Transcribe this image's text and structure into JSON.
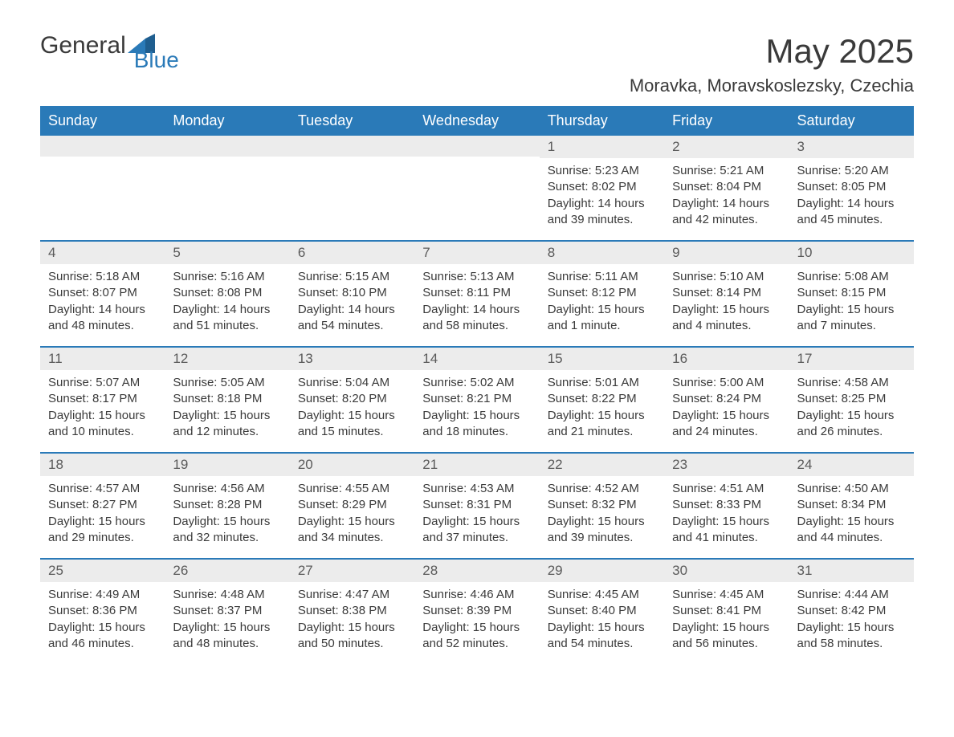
{
  "logo": {
    "text1": "General",
    "text2": "Blue"
  },
  "title": "May 2025",
  "location": "Moravka, Moravskoslezsky, Czechia",
  "weekdays": [
    "Sunday",
    "Monday",
    "Tuesday",
    "Wednesday",
    "Thursday",
    "Friday",
    "Saturday"
  ],
  "colors": {
    "header_bg": "#2a7ab8",
    "header_text": "#ffffff",
    "daynum_bg": "#ececec",
    "week_border": "#2a7ab8",
    "body_text": "#3a3a3a"
  },
  "weeks": [
    [
      {
        "n": "",
        "sunrise": "",
        "sunset": "",
        "daylight": ""
      },
      {
        "n": "",
        "sunrise": "",
        "sunset": "",
        "daylight": ""
      },
      {
        "n": "",
        "sunrise": "",
        "sunset": "",
        "daylight": ""
      },
      {
        "n": "",
        "sunrise": "",
        "sunset": "",
        "daylight": ""
      },
      {
        "n": "1",
        "sunrise": "Sunrise: 5:23 AM",
        "sunset": "Sunset: 8:02 PM",
        "daylight": "Daylight: 14 hours and 39 minutes."
      },
      {
        "n": "2",
        "sunrise": "Sunrise: 5:21 AM",
        "sunset": "Sunset: 8:04 PM",
        "daylight": "Daylight: 14 hours and 42 minutes."
      },
      {
        "n": "3",
        "sunrise": "Sunrise: 5:20 AM",
        "sunset": "Sunset: 8:05 PM",
        "daylight": "Daylight: 14 hours and 45 minutes."
      }
    ],
    [
      {
        "n": "4",
        "sunrise": "Sunrise: 5:18 AM",
        "sunset": "Sunset: 8:07 PM",
        "daylight": "Daylight: 14 hours and 48 minutes."
      },
      {
        "n": "5",
        "sunrise": "Sunrise: 5:16 AM",
        "sunset": "Sunset: 8:08 PM",
        "daylight": "Daylight: 14 hours and 51 minutes."
      },
      {
        "n": "6",
        "sunrise": "Sunrise: 5:15 AM",
        "sunset": "Sunset: 8:10 PM",
        "daylight": "Daylight: 14 hours and 54 minutes."
      },
      {
        "n": "7",
        "sunrise": "Sunrise: 5:13 AM",
        "sunset": "Sunset: 8:11 PM",
        "daylight": "Daylight: 14 hours and 58 minutes."
      },
      {
        "n": "8",
        "sunrise": "Sunrise: 5:11 AM",
        "sunset": "Sunset: 8:12 PM",
        "daylight": "Daylight: 15 hours and 1 minute."
      },
      {
        "n": "9",
        "sunrise": "Sunrise: 5:10 AM",
        "sunset": "Sunset: 8:14 PM",
        "daylight": "Daylight: 15 hours and 4 minutes."
      },
      {
        "n": "10",
        "sunrise": "Sunrise: 5:08 AM",
        "sunset": "Sunset: 8:15 PM",
        "daylight": "Daylight: 15 hours and 7 minutes."
      }
    ],
    [
      {
        "n": "11",
        "sunrise": "Sunrise: 5:07 AM",
        "sunset": "Sunset: 8:17 PM",
        "daylight": "Daylight: 15 hours and 10 minutes."
      },
      {
        "n": "12",
        "sunrise": "Sunrise: 5:05 AM",
        "sunset": "Sunset: 8:18 PM",
        "daylight": "Daylight: 15 hours and 12 minutes."
      },
      {
        "n": "13",
        "sunrise": "Sunrise: 5:04 AM",
        "sunset": "Sunset: 8:20 PM",
        "daylight": "Daylight: 15 hours and 15 minutes."
      },
      {
        "n": "14",
        "sunrise": "Sunrise: 5:02 AM",
        "sunset": "Sunset: 8:21 PM",
        "daylight": "Daylight: 15 hours and 18 minutes."
      },
      {
        "n": "15",
        "sunrise": "Sunrise: 5:01 AM",
        "sunset": "Sunset: 8:22 PM",
        "daylight": "Daylight: 15 hours and 21 minutes."
      },
      {
        "n": "16",
        "sunrise": "Sunrise: 5:00 AM",
        "sunset": "Sunset: 8:24 PM",
        "daylight": "Daylight: 15 hours and 24 minutes."
      },
      {
        "n": "17",
        "sunrise": "Sunrise: 4:58 AM",
        "sunset": "Sunset: 8:25 PM",
        "daylight": "Daylight: 15 hours and 26 minutes."
      }
    ],
    [
      {
        "n": "18",
        "sunrise": "Sunrise: 4:57 AM",
        "sunset": "Sunset: 8:27 PM",
        "daylight": "Daylight: 15 hours and 29 minutes."
      },
      {
        "n": "19",
        "sunrise": "Sunrise: 4:56 AM",
        "sunset": "Sunset: 8:28 PM",
        "daylight": "Daylight: 15 hours and 32 minutes."
      },
      {
        "n": "20",
        "sunrise": "Sunrise: 4:55 AM",
        "sunset": "Sunset: 8:29 PM",
        "daylight": "Daylight: 15 hours and 34 minutes."
      },
      {
        "n": "21",
        "sunrise": "Sunrise: 4:53 AM",
        "sunset": "Sunset: 8:31 PM",
        "daylight": "Daylight: 15 hours and 37 minutes."
      },
      {
        "n": "22",
        "sunrise": "Sunrise: 4:52 AM",
        "sunset": "Sunset: 8:32 PM",
        "daylight": "Daylight: 15 hours and 39 minutes."
      },
      {
        "n": "23",
        "sunrise": "Sunrise: 4:51 AM",
        "sunset": "Sunset: 8:33 PM",
        "daylight": "Daylight: 15 hours and 41 minutes."
      },
      {
        "n": "24",
        "sunrise": "Sunrise: 4:50 AM",
        "sunset": "Sunset: 8:34 PM",
        "daylight": "Daylight: 15 hours and 44 minutes."
      }
    ],
    [
      {
        "n": "25",
        "sunrise": "Sunrise: 4:49 AM",
        "sunset": "Sunset: 8:36 PM",
        "daylight": "Daylight: 15 hours and 46 minutes."
      },
      {
        "n": "26",
        "sunrise": "Sunrise: 4:48 AM",
        "sunset": "Sunset: 8:37 PM",
        "daylight": "Daylight: 15 hours and 48 minutes."
      },
      {
        "n": "27",
        "sunrise": "Sunrise: 4:47 AM",
        "sunset": "Sunset: 8:38 PM",
        "daylight": "Daylight: 15 hours and 50 minutes."
      },
      {
        "n": "28",
        "sunrise": "Sunrise: 4:46 AM",
        "sunset": "Sunset: 8:39 PM",
        "daylight": "Daylight: 15 hours and 52 minutes."
      },
      {
        "n": "29",
        "sunrise": "Sunrise: 4:45 AM",
        "sunset": "Sunset: 8:40 PM",
        "daylight": "Daylight: 15 hours and 54 minutes."
      },
      {
        "n": "30",
        "sunrise": "Sunrise: 4:45 AM",
        "sunset": "Sunset: 8:41 PM",
        "daylight": "Daylight: 15 hours and 56 minutes."
      },
      {
        "n": "31",
        "sunrise": "Sunrise: 4:44 AM",
        "sunset": "Sunset: 8:42 PM",
        "daylight": "Daylight: 15 hours and 58 minutes."
      }
    ]
  ]
}
